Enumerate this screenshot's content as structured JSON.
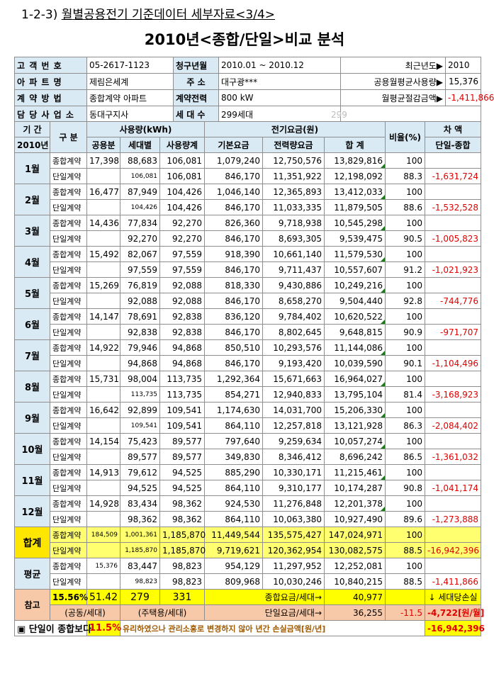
{
  "heading": {
    "number": "1-2-3)",
    "text": "월별공용전기 기준데이터 세부자료<3/4>"
  },
  "title": "2010년<종합/단일>비교 분석",
  "info": {
    "cust_no_label": "고 객 번 호",
    "cust_no": "05-2617-1123",
    "bill_label": "청구년월",
    "bill": "2010.01 ~ 2010.12",
    "recent_label": "최근년도▶",
    "recent": "2010",
    "apt_label": "아 파 트 명",
    "apt": "제림은세계",
    "addr_label": "주 소",
    "addr": "대구광***",
    "avg_use_label": "공용월평균사용량▶",
    "avg_use": "15,376",
    "contract_label": "계 약 방 법",
    "contract": "종합계약 아파트",
    "power_label": "계약전력",
    "power": "800 kW",
    "save_label": "월평균절감금액▶",
    "save": "-1,411,866",
    "office_label": "담 당 사 업 소",
    "office": "동대구지사",
    "house_label": "세 대 수",
    "house": "299세대",
    "house_gray": "299"
  },
  "header": {
    "period": "기 간",
    "year": "2010년",
    "kind": "구 분",
    "usage": "사용량(kWh)",
    "common": "공용분",
    "household": "세대별",
    "usage_total": "사용량계",
    "fee": "전기요금(원)",
    "base": "기본요금",
    "energy": "전력량요금",
    "sum": "합 계",
    "ratio": "비율(%)",
    "diff": "차 액",
    "diff_sub": "단일-종합"
  },
  "labels": {
    "combined": "종합계약",
    "single": "단일계약"
  },
  "months": [
    {
      "name": "1월",
      "c": [
        "17,398",
        "88,683",
        "106,081",
        "1,079,240",
        "12,750,576",
        "13,829,816",
        "100",
        ""
      ],
      "s": [
        "",
        "106,081",
        "106,081",
        "846,170",
        "11,351,922",
        "12,198,092",
        "88.3",
        "-1,631,724"
      ]
    },
    {
      "name": "2월",
      "c": [
        "16,477",
        "87,949",
        "104,426",
        "1,046,140",
        "12,365,893",
        "13,412,033",
        "100",
        ""
      ],
      "s": [
        "",
        "104,426",
        "104,426",
        "846,170",
        "11,033,335",
        "11,879,505",
        "88.6",
        "-1,532,528"
      ]
    },
    {
      "name": "3월",
      "c": [
        "14,436",
        "77,834",
        "92,270",
        "826,360",
        "9,718,938",
        "10,545,298",
        "100",
        ""
      ],
      "s": [
        "",
        "92,270",
        "92,270",
        "846,170",
        "8,693,305",
        "9,539,475",
        "90.5",
        "-1,005,823"
      ]
    },
    {
      "name": "4월",
      "c": [
        "15,492",
        "82,067",
        "97,559",
        "918,390",
        "10,661,140",
        "11,579,530",
        "100",
        ""
      ],
      "s": [
        "",
        "97,559",
        "97,559",
        "846,170",
        "9,711,437",
        "10,557,607",
        "91.2",
        "-1,021,923"
      ]
    },
    {
      "name": "5월",
      "c": [
        "15,269",
        "76,819",
        "92,088",
        "818,330",
        "9,430,886",
        "10,249,216",
        "100",
        ""
      ],
      "s": [
        "",
        "92,088",
        "92,088",
        "846,170",
        "8,658,270",
        "9,504,440",
        "92.8",
        "-744,776"
      ]
    },
    {
      "name": "6월",
      "c": [
        "14,147",
        "78,691",
        "92,838",
        "836,120",
        "9,784,402",
        "10,620,522",
        "100",
        ""
      ],
      "s": [
        "",
        "92,838",
        "92,838",
        "846,170",
        "8,802,645",
        "9,648,815",
        "90.9",
        "-971,707"
      ]
    },
    {
      "name": "7월",
      "c": [
        "14,922",
        "79,946",
        "94,868",
        "850,510",
        "10,293,576",
        "11,144,086",
        "100",
        ""
      ],
      "s": [
        "",
        "94,868",
        "94,868",
        "846,170",
        "9,193,420",
        "10,039,590",
        "90.1",
        "-1,104,496"
      ]
    },
    {
      "name": "8월",
      "c": [
        "15,731",
        "98,004",
        "113,735",
        "1,292,364",
        "15,671,663",
        "16,964,027",
        "100",
        ""
      ],
      "s": [
        "",
        "113,735",
        "113,735",
        "854,271",
        "12,940,833",
        "13,795,104",
        "81.4",
        "-3,168,923"
      ]
    },
    {
      "name": "9월",
      "c": [
        "16,642",
        "92,899",
        "109,541",
        "1,174,630",
        "14,031,700",
        "15,206,330",
        "100",
        ""
      ],
      "s": [
        "",
        "109,541",
        "109,541",
        "864,110",
        "12,257,818",
        "13,121,928",
        "86.3",
        "-2,084,402"
      ]
    },
    {
      "name": "10월",
      "c": [
        "14,154",
        "75,423",
        "89,577",
        "797,640",
        "9,259,634",
        "10,057,274",
        "100",
        ""
      ],
      "s": [
        "",
        "89,577",
        "89,577",
        "349,830",
        "8,346,412",
        "8,696,242",
        "86.5",
        "-1,361,032"
      ]
    },
    {
      "name": "11월",
      "c": [
        "14,913",
        "79,612",
        "94,525",
        "885,290",
        "10,330,171",
        "11,215,461",
        "100",
        ""
      ],
      "s": [
        "",
        "94,525",
        "94,525",
        "864,110",
        "9,310,177",
        "10,174,287",
        "90.8",
        "-1,041,174"
      ]
    },
    {
      "name": "12월",
      "c": [
        "14,928",
        "83,434",
        "98,362",
        "924,530",
        "11,276,848",
        "12,201,378",
        "100",
        ""
      ],
      "s": [
        "",
        "98,362",
        "98,362",
        "864,110",
        "10,063,380",
        "10,927,490",
        "89.6",
        "-1,273,888"
      ]
    }
  ],
  "total": {
    "name": "합계",
    "c": [
      "184,509",
      "1,001,361",
      "1,185,870",
      "11,449,544",
      "135,575,427",
      "147,024,971",
      "100",
      ""
    ],
    "s": [
      "",
      "1,185,870",
      "1,185,870",
      "9,719,621",
      "120,362,954",
      "130,082,575",
      "88.5",
      "-16,942,396"
    ]
  },
  "average": {
    "name": "평균",
    "c": [
      "15,376",
      "83,447",
      "98,823",
      "954,129",
      "11,297,952",
      "12,252,081",
      "100",
      ""
    ],
    "s": [
      "",
      "98,823",
      "98,823",
      "809,968",
      "10,030,246",
      "10,840,215",
      "88.5",
      "-1,411,866"
    ]
  },
  "reference": {
    "label": "참고",
    "pct": "15.56%",
    "ratio1": "51.42",
    "v279": "279",
    "v331": "331",
    "combined_per": "종합요금/세대→",
    "combined_per_val": "40,977",
    "loss_label": "↓ 세대당손실",
    "common_per": "(공동/세대)",
    "house_per": "(주택용/세대)",
    "single_per": "단일요금/세대→",
    "single_per_val": "36,255",
    "diff_pct": "-11.5",
    "loss_val": "-4,722[원/월]"
  },
  "bottom": {
    "lead": "▣ 단일이 종합보다",
    "pct": "11.5%",
    "text": "유리하였으나 관리소홍로 변경하지 않아 년간 손실금액[원/년]",
    "amount": "-16,942,396"
  }
}
